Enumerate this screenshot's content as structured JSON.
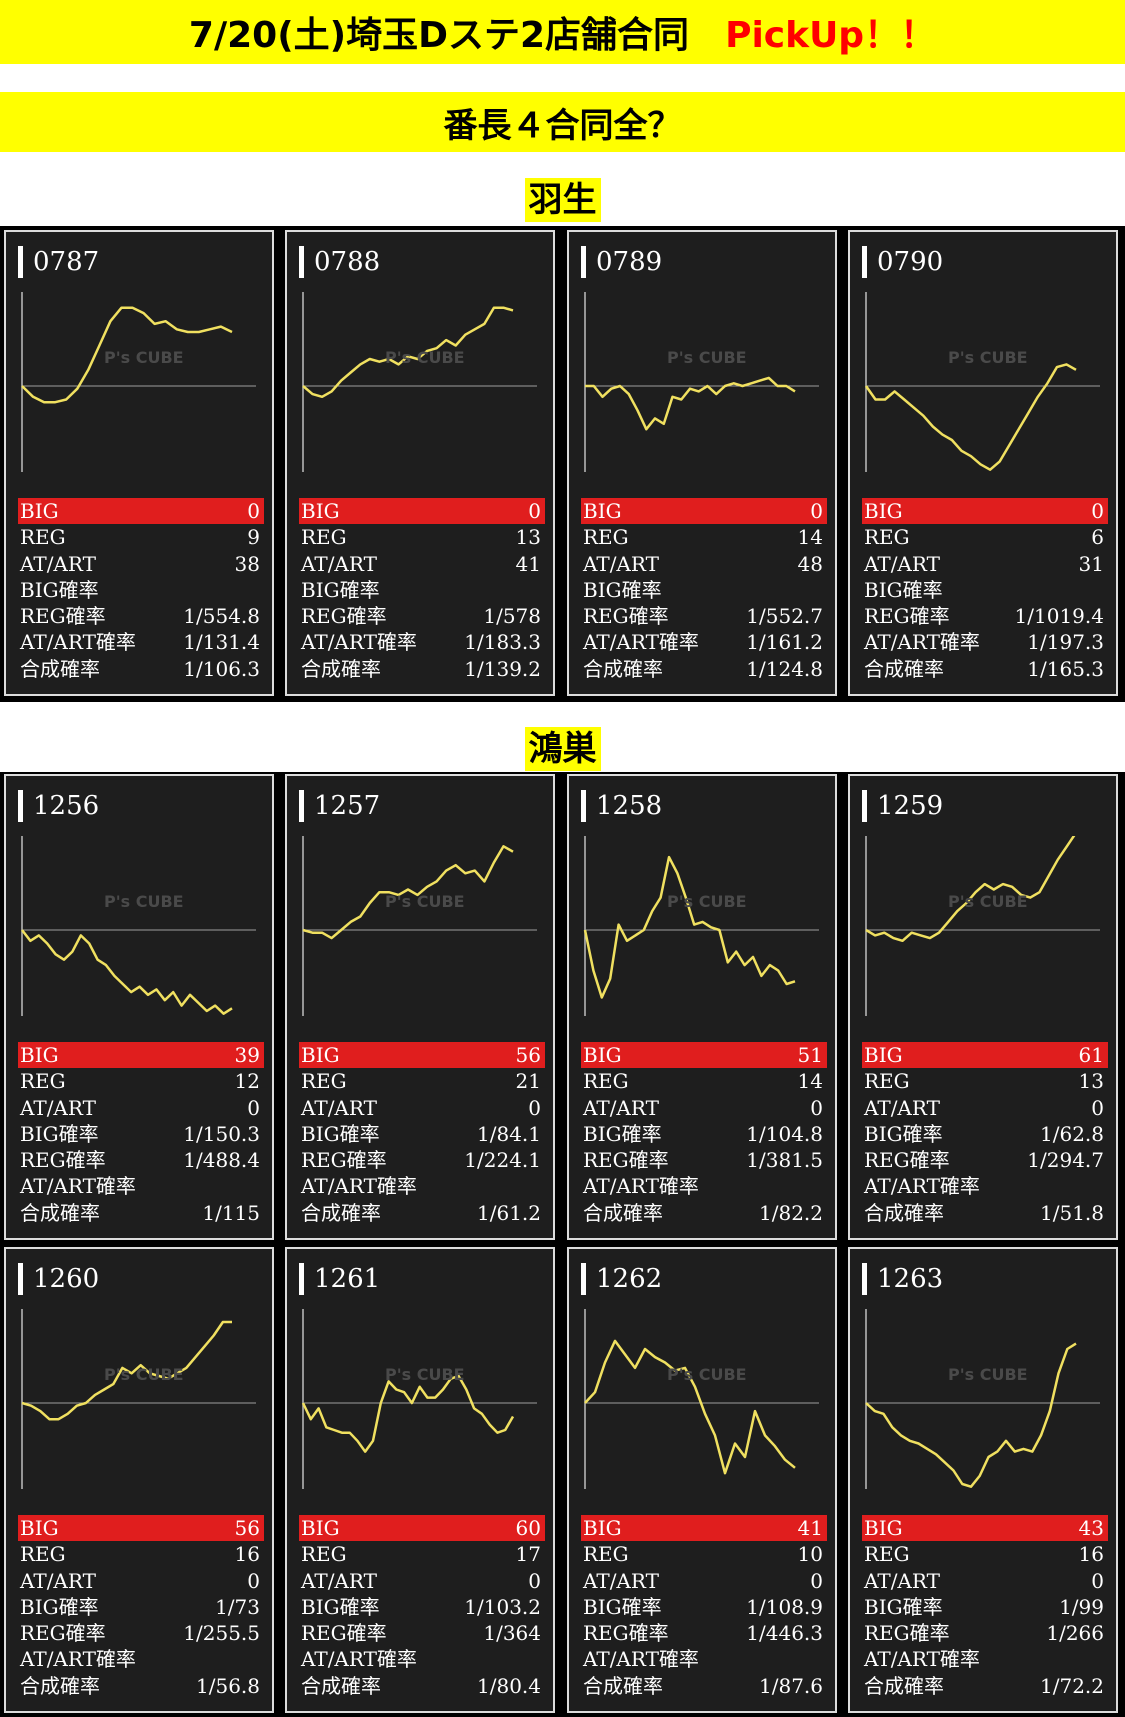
{
  "header": {
    "title": "7/20(土)埼玉Dステ2店舗合同",
    "pickup": "PickUp！！",
    "subtitle": "番長４合同全？"
  },
  "watermark": "P's CUBE",
  "labels": {
    "big": "BIG",
    "reg": "REG",
    "at": "AT/ART",
    "big_rate": "BIG確率",
    "reg_rate": "REG確率",
    "at_rate": "AT/ART確率",
    "total_rate": "合成確率"
  },
  "colors": {
    "highlight": "#ffff00",
    "pickup": "#ff0000",
    "big_bar": "#e01e1e",
    "line": "#f0e060",
    "card_bg": "#1e1e1e"
  },
  "sections": [
    {
      "name": "羽生",
      "machines": [
        {
          "id": "0787",
          "big": "0",
          "reg": "9",
          "at": "38",
          "big_rate": "",
          "reg_rate": "1/554.8",
          "at_rate": "1/131.4",
          "total_rate": "1/106.3",
          "trend": [
            0,
            -8,
            -12,
            -12,
            -10,
            -2,
            12,
            30,
            48,
            58,
            58,
            54,
            46,
            48,
            42,
            40,
            40,
            42,
            44,
            40
          ]
        },
        {
          "id": "0788",
          "big": "0",
          "reg": "13",
          "at": "41",
          "big_rate": "",
          "reg_rate": "1/578",
          "at_rate": "1/183.3",
          "total_rate": "1/139.2",
          "trend": [
            0,
            -6,
            -8,
            -4,
            4,
            10,
            16,
            20,
            18,
            20,
            16,
            22,
            20,
            26,
            28,
            34,
            30,
            38,
            42,
            46,
            58,
            58,
            56
          ]
        },
        {
          "id": "0789",
          "big": "0",
          "reg": "14",
          "at": "48",
          "big_rate": "",
          "reg_rate": "1/552.7",
          "at_rate": "1/161.2",
          "total_rate": "1/124.8",
          "trend": [
            0,
            0,
            -8,
            -2,
            0,
            -6,
            -18,
            -32,
            -24,
            -28,
            -8,
            -10,
            -2,
            -4,
            0,
            -6,
            0,
            2,
            0,
            2,
            4,
            6,
            0,
            0,
            -4
          ]
        },
        {
          "id": "0790",
          "big": "0",
          "reg": "6",
          "at": "31",
          "big_rate": "",
          "reg_rate": "1/1019.4",
          "at_rate": "1/197.3",
          "total_rate": "1/165.3",
          "trend": [
            0,
            -10,
            -10,
            -4,
            -10,
            -16,
            -22,
            -30,
            -36,
            -40,
            -48,
            -52,
            -58,
            -62,
            -56,
            -44,
            -32,
            -20,
            -8,
            2,
            14,
            16,
            12
          ]
        }
      ]
    },
    {
      "name": "鴻巣",
      "machines": [
        {
          "id": "1256",
          "big": "39",
          "reg": "12",
          "at": "0",
          "big_rate": "1/150.3",
          "reg_rate": "1/488.4",
          "at_rate": "",
          "total_rate": "1/115",
          "trend": [
            0,
            -8,
            -4,
            -10,
            -18,
            -22,
            -16,
            -4,
            -10,
            -22,
            -26,
            -34,
            -40,
            -46,
            -42,
            -48,
            -44,
            -52,
            -46,
            -56,
            -48,
            -54,
            -60,
            -56,
            -62,
            -58
          ]
        },
        {
          "id": "1257",
          "big": "56",
          "reg": "21",
          "at": "0",
          "big_rate": "1/84.1",
          "reg_rate": "1/224.1",
          "at_rate": "",
          "total_rate": "1/61.2",
          "trend": [
            0,
            -2,
            -2,
            -6,
            0,
            6,
            10,
            20,
            28,
            28,
            26,
            30,
            26,
            32,
            36,
            44,
            48,
            42,
            44,
            36,
            50,
            62,
            58
          ]
        },
        {
          "id": "1258",
          "big": "51",
          "reg": "14",
          "at": "0",
          "big_rate": "1/104.8",
          "reg_rate": "1/381.5",
          "at_rate": "",
          "total_rate": "1/82.2",
          "trend": [
            0,
            -30,
            -50,
            -36,
            4,
            -8,
            -4,
            0,
            14,
            24,
            54,
            42,
            24,
            4,
            6,
            2,
            0,
            -24,
            -16,
            -26,
            -20,
            -34,
            -26,
            -30,
            -40,
            -38
          ]
        },
        {
          "id": "1259",
          "big": "61",
          "reg": "13",
          "at": "0",
          "big_rate": "1/62.8",
          "reg_rate": "1/294.7",
          "at_rate": "",
          "total_rate": "1/51.8",
          "trend": [
            0,
            -4,
            -2,
            -6,
            -8,
            -2,
            -4,
            -6,
            -2,
            6,
            14,
            20,
            28,
            34,
            30,
            34,
            32,
            26,
            24,
            28,
            40,
            52,
            62,
            72
          ]
        }
      ]
    },
    {
      "name": "",
      "machines": [
        {
          "id": "1260",
          "big": "56",
          "reg": "16",
          "at": "0",
          "big_rate": "1/73",
          "reg_rate": "1/255.5",
          "at_rate": "",
          "total_rate": "1/56.8",
          "trend": [
            0,
            -2,
            -6,
            -12,
            -12,
            -8,
            -2,
            0,
            6,
            10,
            14,
            26,
            22,
            28,
            22,
            20,
            18,
            22,
            26,
            34,
            42,
            50,
            60,
            60
          ]
        },
        {
          "id": "1261",
          "big": "60",
          "reg": "17",
          "at": "0",
          "big_rate": "1/103.2",
          "reg_rate": "1/364",
          "at_rate": "",
          "total_rate": "1/80.4",
          "trend": [
            0,
            -12,
            -4,
            -18,
            -20,
            -22,
            -22,
            -28,
            -36,
            -28,
            0,
            16,
            10,
            8,
            0,
            12,
            4,
            4,
            10,
            18,
            20,
            10,
            -4,
            -8,
            -16,
            -22,
            -20,
            -10
          ]
        },
        {
          "id": "1262",
          "big": "41",
          "reg": "10",
          "at": "0",
          "big_rate": "1/108.9",
          "reg_rate": "1/446.3",
          "at_rate": "",
          "total_rate": "1/87.6",
          "trend": [
            0,
            8,
            30,
            46,
            36,
            26,
            40,
            34,
            30,
            24,
            26,
            12,
            -8,
            -24,
            -52,
            -30,
            -40,
            -6,
            -24,
            -32,
            -42,
            -48
          ]
        },
        {
          "id": "1263",
          "big": "43",
          "reg": "16",
          "at": "0",
          "big_rate": "1/99",
          "reg_rate": "1/266",
          "at_rate": "",
          "total_rate": "1/72.2",
          "trend": [
            0,
            -6,
            -8,
            -18,
            -24,
            -28,
            -30,
            -34,
            -38,
            -44,
            -50,
            -60,
            -62,
            -54,
            -40,
            -36,
            -28,
            -36,
            -34,
            -36,
            -24,
            -6,
            22,
            40,
            44
          ]
        }
      ]
    }
  ]
}
